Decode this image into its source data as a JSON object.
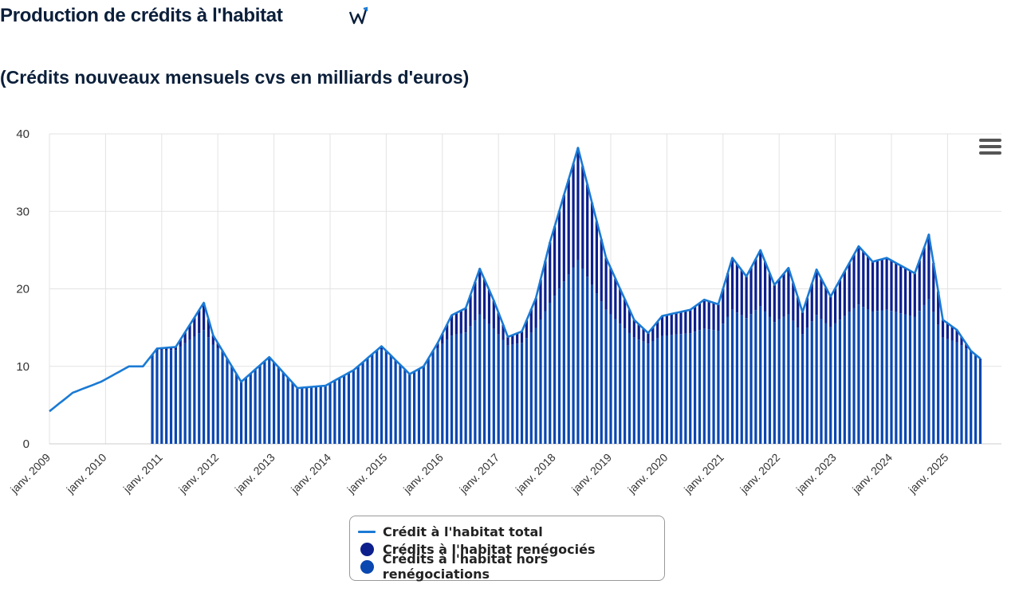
{
  "header": {
    "title": "Production de crédits à l'habitat",
    "subtitle": "(Crédits nouveaux mensuels cvs en milliards d'euros)"
  },
  "icons": {
    "brand": "brand-logo-icon",
    "menu": "menu-icon"
  },
  "colors": {
    "total": "#1a7ad4",
    "reneg": "#0c1f8c",
    "hors": "#0a47b0",
    "grid": "#e3e3e3",
    "text": "#333333"
  },
  "chart_data": {
    "type": "bar",
    "stacked": true,
    "x_start": "2009-01",
    "x_end": "2025-08",
    "x_tick_labels": [
      "janv. 2009",
      "janv. 2010",
      "janv. 2011",
      "janv. 2012",
      "janv. 2013",
      "janv. 2014",
      "janv. 2015",
      "janv. 2016",
      "janv. 2017",
      "janv. 2018",
      "janv. 2019",
      "janv. 2020",
      "janv. 2021",
      "janv. 2022",
      "janv. 2023",
      "janv. 2024",
      "janv. 2025"
    ],
    "ylim": [
      0,
      40
    ],
    "y_ticks": [
      0,
      10,
      20,
      30,
      40
    ],
    "grid": true,
    "legend_position": "bottom",
    "series": [
      {
        "name": "Crédit à l'habitat total",
        "type": "line",
        "key_months": [
          "2009-01",
          "2009-06",
          "2009-12",
          "2010-06",
          "2010-09",
          "2010-12",
          "2011-04",
          "2011-10",
          "2011-12",
          "2012-06",
          "2012-12",
          "2013-06",
          "2013-12",
          "2014-06",
          "2014-12",
          "2015-06",
          "2015-09",
          "2015-12",
          "2016-03",
          "2016-06",
          "2016-09",
          "2016-12",
          "2017-03",
          "2017-06",
          "2017-09",
          "2017-12",
          "2018-06",
          "2018-12",
          "2019-06",
          "2019-09",
          "2019-12",
          "2020-06",
          "2020-09",
          "2020-12",
          "2021-03",
          "2021-06",
          "2021-09",
          "2021-12",
          "2022-03",
          "2022-06",
          "2022-09",
          "2022-12",
          "2023-06",
          "2023-09",
          "2023-12",
          "2024-06",
          "2024-09",
          "2024-12",
          "2025-03",
          "2025-06",
          "2025-08"
        ],
        "key_values": [
          4.2,
          6.6,
          8.0,
          10.0,
          10.0,
          12.3,
          12.5,
          18.2,
          14.0,
          8.0,
          11.2,
          7.2,
          7.5,
          9.5,
          12.6,
          9.0,
          10.0,
          13.0,
          16.6,
          17.5,
          22.6,
          18.5,
          13.8,
          14.5,
          18.8,
          26.0,
          38.2,
          24.0,
          16.0,
          14.3,
          16.5,
          17.3,
          18.6,
          18.0,
          24.0,
          21.6,
          25.0,
          20.5,
          22.7,
          17.0,
          22.5,
          19.0,
          25.5,
          23.5,
          24.0,
          22.0,
          27.0,
          16.0,
          14.7,
          12.0,
          11.0
        ]
      },
      {
        "name": "Crédits à l'habitat renégociés",
        "type": "bar"
      },
      {
        "name": "Crédits à l'habitat hors renégociations",
        "type": "bar"
      }
    ]
  }
}
